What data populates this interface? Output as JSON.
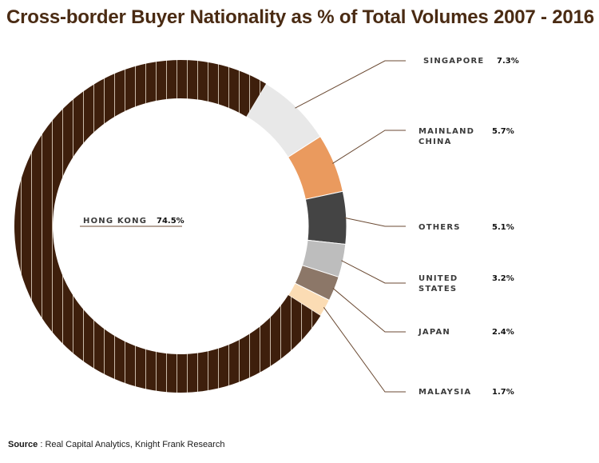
{
  "title": "Cross-border Buyer Nationality as % of Total Volumes 2007 - 2016",
  "source": {
    "prefix": "Source",
    "text": " : Real Capital Analytics, Knight Frank Research"
  },
  "colors": {
    "title": "#4a2b13",
    "hong_kong": "#3e1f0c",
    "hong_kong_stripe": "#c9b9a8",
    "singapore": "#e8e8e8",
    "mainland_china": "#ea9a5e",
    "others": "#444444",
    "united_states": "#bdbdbd",
    "japan": "#8c7768",
    "malaysia": "#fbdcb4",
    "leader": "#6b4a33"
  },
  "chart_data": {
    "type": "pie",
    "style": "donut",
    "title": "Cross-border Buyer Nationality as % of Total Volumes 2007 - 2016",
    "unit": "%",
    "slices": [
      {
        "key": "singapore",
        "label_lines": [
          "SINGAPORE"
        ],
        "value": 7.3,
        "value_label": "7.3%",
        "color": "#e8e8e8"
      },
      {
        "key": "mainland_china",
        "label_lines": [
          "MAINLAND",
          "CHINA"
        ],
        "value": 5.7,
        "value_label": "5.7%",
        "color": "#ea9a5e"
      },
      {
        "key": "others",
        "label_lines": [
          "OTHERS"
        ],
        "value": 5.1,
        "value_label": "5.1%",
        "color": "#444444"
      },
      {
        "key": "united_states",
        "label_lines": [
          "UNITED",
          "STATES"
        ],
        "value": 3.2,
        "value_label": "3.2%",
        "color": "#bdbdbd"
      },
      {
        "key": "japan",
        "label_lines": [
          "JAPAN"
        ],
        "value": 2.4,
        "value_label": "2.4%",
        "color": "#8c7768"
      },
      {
        "key": "malaysia",
        "label_lines": [
          "MALAYSIA"
        ],
        "value": 1.7,
        "value_label": "1.7%",
        "color": "#fbdcb4"
      },
      {
        "key": "hong_kong",
        "label_lines": [
          "HONG KONG"
        ],
        "value": 74.5,
        "value_label": "74.5%",
        "color": "#3e1f0c",
        "striped": true
      }
    ]
  }
}
